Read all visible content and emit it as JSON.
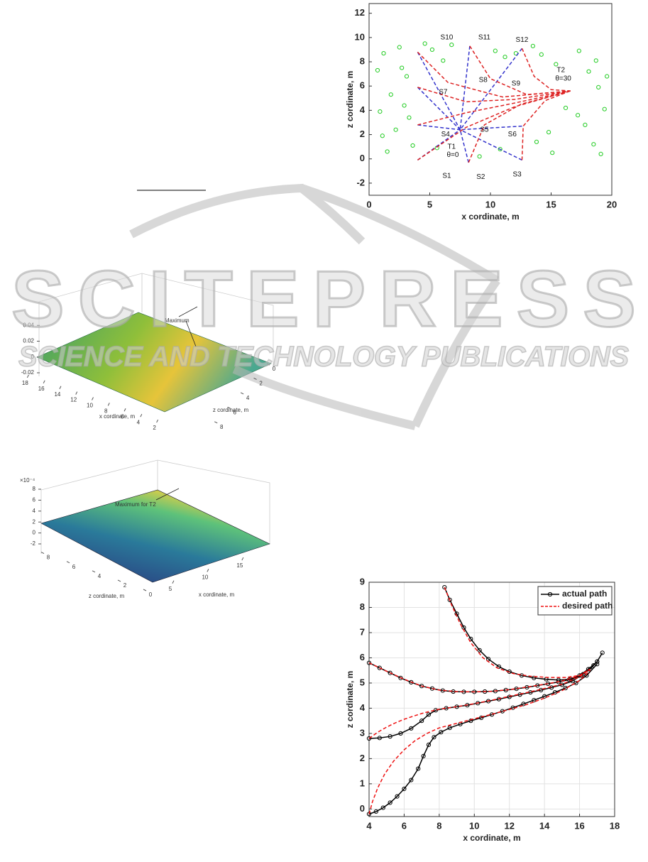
{
  "chart_data": [
    {
      "type": "line",
      "xlabel": "x cordinate, m",
      "ylabel": "z cordinate, m",
      "xlim": [
        0,
        20
      ],
      "ylim": [
        -3,
        12.8
      ],
      "xticks": [
        0,
        5,
        10,
        15,
        20
      ],
      "yticks": [
        -2,
        0,
        2,
        4,
        6,
        8,
        10,
        12
      ],
      "grid": false,
      "annotations": [
        "S10",
        "S11",
        "S12",
        "T2",
        "θ=30",
        "S8",
        "S9",
        "S7",
        "S5",
        "S6",
        "S4",
        "T1",
        "θ=0",
        "S1",
        "S2",
        "S3"
      ],
      "series": [
        {
          "color": "#22cc22",
          "marker": "o",
          "line": false,
          "x": [
            1.2,
            2.5,
            3.1,
            1.8,
            0.9,
            2.2,
            3.6,
            1.5,
            2.9,
            0.7,
            5.2,
            6.1,
            5.6,
            9.1,
            10.4,
            11.2,
            13.5,
            14.2,
            13.8,
            15.1,
            17.3,
            18.1,
            18.9,
            19.4,
            17.8,
            18.5,
            19.1,
            17.2,
            14.8,
            10.8,
            6.8,
            3.3,
            4.6,
            12.1,
            16.2,
            18.7,
            1.1,
            2.7,
            19.6,
            15.4
          ],
          "values": [
            8.7,
            9.2,
            6.8,
            5.3,
            3.9,
            2.4,
            1.1,
            0.6,
            4.4,
            7.3,
            9.0,
            8.1,
            0.9,
            0.2,
            8.9,
            8.4,
            9.3,
            8.6,
            1.4,
            0.5,
            8.9,
            7.2,
            5.9,
            4.1,
            2.8,
            1.2,
            0.4,
            3.6,
            2.2,
            0.8,
            9.4,
            3.4,
            9.5,
            8.7,
            4.2,
            8.1,
            1.9,
            7.5,
            6.8,
            7.8
          ]
        },
        {
          "color": "#3333cc",
          "dash": true,
          "x": [
            4,
            7.5,
            null,
            8.2,
            7.5,
            null,
            12.6,
            7.5,
            null,
            4,
            7.5,
            null,
            12.6,
            7.5,
            null,
            4,
            7.5,
            null,
            4,
            7.5,
            null,
            8.3,
            7.5,
            null,
            12.6,
            7.5
          ],
          "values": [
            -0.1,
            2.4,
            null,
            -0.3,
            2.4,
            null,
            -0.1,
            2.4,
            null,
            2.8,
            2.4,
            null,
            2.7,
            2.4,
            null,
            5.9,
            2.4,
            null,
            8.8,
            2.4,
            null,
            9.3,
            2.4,
            null,
            9.1,
            2.4
          ]
        },
        {
          "color": "#dd2222",
          "dash": true,
          "x": [
            4,
            8,
            12,
            16.6,
            null,
            8.2,
            9.5,
            12.5,
            16.6,
            null,
            12.6,
            12.7,
            14.5,
            16.6,
            null,
            4,
            8,
            12,
            16.6,
            null,
            4,
            8,
            12,
            16.6,
            null,
            4,
            6.5,
            11,
            16.6,
            null,
            8.3,
            10,
            13,
            16.6,
            null,
            12.6,
            13.6,
            15,
            16.6
          ],
          "values": [
            -0.1,
            2.6,
            4.3,
            5.6,
            null,
            -0.3,
            2.8,
            4.5,
            5.6,
            null,
            -0.1,
            2.7,
            4.8,
            5.6,
            null,
            2.8,
            3.8,
            4.6,
            5.6,
            null,
            5.9,
            4.7,
            4.9,
            5.6,
            null,
            8.8,
            6.3,
            5.1,
            5.6,
            null,
            9.3,
            6.6,
            5.3,
            5.6,
            null,
            9.1,
            6.8,
            5.7,
            5.6
          ]
        }
      ]
    },
    {
      "type": "surface",
      "xlabel": "x cordinate, m",
      "ylabel": "z cordinate, m",
      "annotation": "Maximum",
      "xlim": [
        1,
        19
      ],
      "xticks": [
        18,
        16,
        14,
        12,
        10,
        8,
        6,
        4,
        2
      ],
      "ylim": [
        0,
        9
      ],
      "yticks": [
        0,
        2,
        4,
        6,
        8
      ],
      "zlim": [
        -0.02,
        0.06
      ],
      "zticks": [
        -0.02,
        0,
        0.02,
        0.04
      ]
    },
    {
      "type": "surface",
      "xlabel": "x cordinate, m",
      "ylabel": "z cordinate, m",
      "annotation": "Maximum for T2",
      "zmultiplier": "×10⁻⁴",
      "xlim": [
        0,
        19
      ],
      "xticks": [
        5,
        10,
        15
      ],
      "ylim": [
        0,
        9
      ],
      "yticks": [
        8,
        6,
        4,
        2,
        0
      ],
      "zlim": [
        -2,
        8
      ],
      "zticks": [
        8,
        6,
        4,
        2,
        0,
        -2
      ]
    },
    {
      "type": "line",
      "xlabel": "x cordinate, m",
      "ylabel": "z cordinate, m",
      "xlim": [
        4,
        18
      ],
      "ylim": [
        -0.3,
        9
      ],
      "xticks": [
        4,
        6,
        8,
        10,
        12,
        14,
        16,
        18
      ],
      "yticks": [
        0,
        1,
        2,
        3,
        4,
        5,
        6,
        7,
        8,
        9
      ],
      "grid": true,
      "legend": "upper right",
      "series": [
        {
          "name": "actual path",
          "color": "#000000",
          "marker": "o",
          "x": [
            8.3,
            8.6,
            9.0,
            9.4,
            9.8,
            10.3,
            10.8,
            11.4,
            12,
            12.7,
            13.4,
            14.1,
            14.8,
            15.5,
            16.1,
            16.6,
            17.0,
            17.3,
            null,
            4,
            4.6,
            5.2,
            5.8,
            6.4,
            7,
            7.6,
            8.2,
            8.8,
            9.4,
            10,
            10.6,
            11.2,
            11.8,
            12.4,
            13,
            13.6,
            14.2,
            14.8,
            15.4,
            16,
            16.5,
            17,
            null,
            4,
            4.6,
            5.2,
            5.8,
            6.4,
            7,
            7.4,
            7.8,
            8.4,
            9,
            9.6,
            10.2,
            10.8,
            11.4,
            12,
            12.6,
            13.2,
            13.8,
            14.4,
            15,
            15.6,
            16.2,
            16.8,
            null,
            4,
            4.4,
            4.8,
            5.2,
            5.6,
            6,
            6.4,
            6.8,
            7.1,
            7.4,
            7.7,
            8.1,
            8.6,
            9.2,
            9.8,
            10.4,
            11,
            11.6,
            12.2,
            12.8,
            13.4,
            14,
            14.6,
            15.2,
            15.8,
            16.4,
            17
          ],
          "values": [
            8.8,
            8.3,
            7.75,
            7.2,
            6.75,
            6.3,
            5.95,
            5.65,
            5.45,
            5.3,
            5.2,
            5.15,
            5.12,
            5.15,
            5.3,
            5.55,
            5.85,
            6.2,
            null,
            5.8,
            5.6,
            5.4,
            5.2,
            5.03,
            4.88,
            4.78,
            4.7,
            4.66,
            4.65,
            4.65,
            4.66,
            4.68,
            4.72,
            4.77,
            4.83,
            4.9,
            4.97,
            5.04,
            5.13,
            5.3,
            5.55,
            5.85,
            null,
            2.8,
            2.82,
            2.88,
            3.0,
            3.2,
            3.5,
            3.75,
            3.92,
            4.0,
            4.06,
            4.12,
            4.2,
            4.28,
            4.36,
            4.45,
            4.54,
            4.63,
            4.72,
            4.82,
            4.93,
            5.08,
            5.35,
            5.7,
            null,
            -0.2,
            -0.1,
            0.05,
            0.25,
            0.5,
            0.8,
            1.15,
            1.6,
            2.1,
            2.55,
            2.85,
            3.05,
            3.22,
            3.37,
            3.5,
            3.62,
            3.75,
            3.88,
            4.02,
            4.17,
            4.32,
            4.47,
            4.63,
            4.8,
            5.0,
            5.3,
            5.75
          ]
        },
        {
          "name": "desired path",
          "color": "#ee1111",
          "dash": true,
          "x": [
            8.3,
            8.7,
            9.2,
            9.8,
            10.5,
            11.3,
            12.2,
            13.2,
            14.2,
            15.2,
            16.0,
            16.6,
            null,
            4,
            5,
            6,
            7,
            8,
            9,
            10,
            11,
            12,
            13,
            14,
            15,
            16,
            16.6,
            null,
            4,
            4.5,
            5,
            5.5,
            6,
            6.5,
            7,
            7.5,
            8,
            9,
            10,
            11,
            12,
            13,
            14,
            15,
            16,
            16.6,
            null,
            4,
            4.2,
            4.5,
            4.9,
            5.4,
            6,
            6.6,
            7.3,
            8,
            9,
            10,
            11,
            12,
            13,
            14,
            15,
            16,
            16.6
          ],
          "values": [
            8.8,
            8.1,
            7.35,
            6.6,
            6.0,
            5.6,
            5.38,
            5.27,
            5.22,
            5.22,
            5.3,
            5.55,
            null,
            5.8,
            5.47,
            5.15,
            4.88,
            4.72,
            4.66,
            4.65,
            4.67,
            4.74,
            4.84,
            4.95,
            5.08,
            5.3,
            5.55,
            null,
            2.8,
            3.05,
            3.25,
            3.42,
            3.56,
            3.68,
            3.79,
            3.88,
            3.96,
            4.06,
            4.18,
            4.32,
            4.47,
            4.62,
            4.78,
            4.95,
            5.25,
            5.55,
            null,
            -0.2,
            0.3,
            0.85,
            1.4,
            1.9,
            2.35,
            2.7,
            3.0,
            3.22,
            3.4,
            3.58,
            3.76,
            3.95,
            4.15,
            4.4,
            4.7,
            5.1,
            5.5
          ]
        }
      ]
    }
  ],
  "watermark": {
    "title": "SCITEPRESS",
    "subtitle": "SCIENCE AND TECHNOLOGY PUBLICATIONS"
  }
}
